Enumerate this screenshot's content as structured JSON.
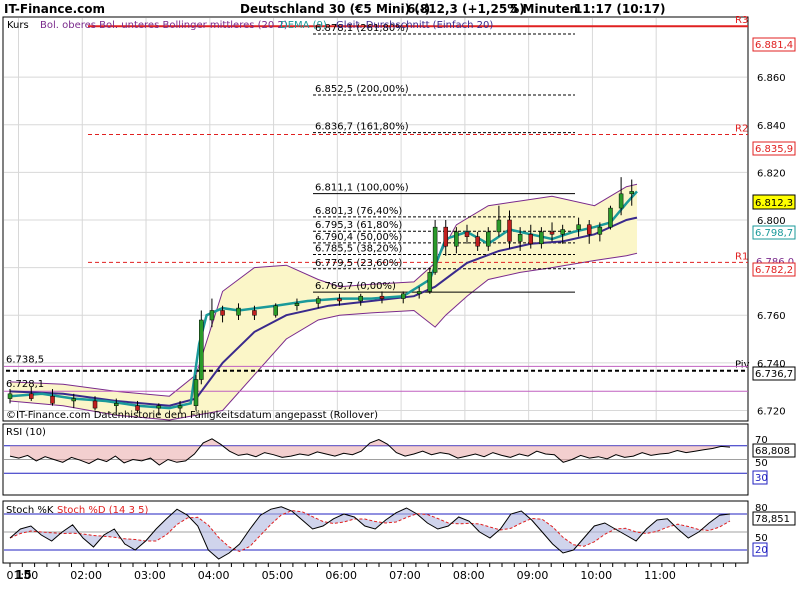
{
  "header": {
    "site": "IT-Finance.com",
    "instrument": "Deutschland 30 (€5 Mini) (-)",
    "price": "6.812,3 (+1,25%)",
    "interval": "5 Minuten",
    "time": "11:17 (10:17)"
  },
  "colors": {
    "bollinger": "#7a2a8c",
    "dema": "#1a9a9a",
    "sma": "#3a2a8c",
    "band_fill": "#fbf6c8",
    "resistance": "#e02020",
    "pivot": "#000000",
    "rsi_fill": "#e8a0a0",
    "stoch_fill": "#b0b8e0"
  },
  "legend": {
    "kurs": "Kurs",
    "bollinger": "Bol. oberes Bol. unteres Bollinger mittleres (20 2)",
    "dema": "DEMA (9)",
    "sma": "Gleit. Durchschnitt (Einfach 20)"
  },
  "watermark": "©IT-Finance.com  Datenhistorie dem Fälligkeitsdatum angepasst (Rollover)",
  "levels": {
    "r3": {
      "label": "R3",
      "value": "6.881,4"
    },
    "r2": {
      "label": "R2",
      "value": "6.835,9"
    },
    "r1": {
      "label": "R1",
      "value": "6.782,2"
    },
    "piv": {
      "label": "Piv",
      "value": "6.736,7"
    },
    "last": "6.812,3",
    "sma_val": "6.798,7",
    "band_lower": "6.786,0",
    "left_hi": "6.738,5",
    "left_lo": "6.728,1"
  },
  "fib": [
    "6.878,1 (261,80%)",
    "6.852,5 (200,00%)",
    "6.836,7 (161,80%)",
    "6.811,1 (100,00%)",
    "6.801,3 (76,40%)",
    "6.795,3 (61,80%)",
    "6.790,4 (50,00%)",
    "6.785,5 (38,20%)",
    "6.779,5 (23,60%)",
    "6.769,7 (0,00%)"
  ],
  "price_axis": [
    "6.860",
    "6.840",
    "6.820",
    "6.800",
    "6.780",
    "6.760",
    "6.740",
    "6.720"
  ],
  "time_axis": [
    "15",
    "01:00",
    "02:00",
    "03:00",
    "04:00",
    "05:00",
    "06:00",
    "07:00",
    "08:00",
    "09:00",
    "10:00",
    "11:00"
  ],
  "rsi": {
    "title": "RSI (10)",
    "value": "68,808",
    "ticks": [
      "70",
      "50"
    ],
    "low_label": "30"
  },
  "stoch": {
    "title": "Stoch %K",
    "title2": "Stoch %D (14 3 5)",
    "value": "78,851",
    "ticks": [
      "80",
      "50"
    ],
    "low_label": "20"
  },
  "chart_data": {
    "type": "candlestick",
    "ylim": [
      6716,
      6884
    ],
    "x_range": [
      "00:00",
      "11:20"
    ],
    "dema_points": [
      [
        0,
        6726
      ],
      [
        30,
        6727
      ],
      [
        60,
        6725
      ],
      [
        90,
        6724
      ],
      [
        120,
        6722
      ],
      [
        150,
        6721
      ],
      [
        170,
        6723
      ],
      [
        178,
        6748
      ],
      [
        185,
        6760
      ],
      [
        200,
        6763
      ],
      [
        215,
        6762
      ],
      [
        250,
        6764
      ],
      [
        280,
        6766
      ],
      [
        310,
        6767
      ],
      [
        340,
        6767
      ],
      [
        370,
        6768
      ],
      [
        395,
        6775
      ],
      [
        410,
        6792
      ],
      [
        430,
        6795
      ],
      [
        450,
        6790
      ],
      [
        470,
        6796
      ],
      [
        490,
        6794
      ],
      [
        510,
        6792
      ],
      [
        530,
        6795
      ],
      [
        550,
        6797
      ],
      [
        565,
        6799
      ],
      [
        580,
        6807
      ],
      [
        590,
        6812
      ]
    ],
    "sma_points": [
      [
        0,
        6728
      ],
      [
        50,
        6727
      ],
      [
        100,
        6724
      ],
      [
        150,
        6722
      ],
      [
        175,
        6725
      ],
      [
        200,
        6740
      ],
      [
        230,
        6753
      ],
      [
        260,
        6760
      ],
      [
        300,
        6764
      ],
      [
        340,
        6766
      ],
      [
        380,
        6768
      ],
      [
        400,
        6772
      ],
      [
        430,
        6782
      ],
      [
        460,
        6787
      ],
      [
        490,
        6790
      ],
      [
        520,
        6791
      ],
      [
        550,
        6794
      ],
      [
        580,
        6800
      ],
      [
        590,
        6801
      ]
    ],
    "upper_points": [
      [
        0,
        6732
      ],
      [
        50,
        6731
      ],
      [
        100,
        6728
      ],
      [
        150,
        6726
      ],
      [
        175,
        6735
      ],
      [
        200,
        6770
      ],
      [
        230,
        6780
      ],
      [
        260,
        6781
      ],
      [
        290,
        6775
      ],
      [
        310,
        6772
      ],
      [
        340,
        6773
      ],
      [
        380,
        6774
      ],
      [
        400,
        6782
      ],
      [
        420,
        6798
      ],
      [
        450,
        6806
      ],
      [
        480,
        6808
      ],
      [
        510,
        6810
      ],
      [
        550,
        6806
      ],
      [
        580,
        6814
      ],
      [
        590,
        6815
      ]
    ],
    "lower_points": [
      [
        0,
        6724
      ],
      [
        50,
        6722
      ],
      [
        100,
        6718
      ],
      [
        150,
        6716
      ],
      [
        175,
        6718
      ],
      [
        200,
        6720
      ],
      [
        230,
        6735
      ],
      [
        260,
        6750
      ],
      [
        290,
        6758
      ],
      [
        310,
        6760
      ],
      [
        340,
        6761
      ],
      [
        380,
        6762
      ],
      [
        400,
        6755
      ],
      [
        410,
        6760
      ],
      [
        430,
        6768
      ],
      [
        450,
        6775
      ],
      [
        480,
        6778
      ],
      [
        510,
        6780
      ],
      [
        550,
        6783
      ],
      [
        580,
        6785
      ],
      [
        590,
        6786
      ]
    ],
    "candles": [
      {
        "t": 0,
        "o": 6725,
        "h": 6729,
        "l": 6723,
        "c": 6727
      },
      {
        "t": 20,
        "o": 6727,
        "h": 6730,
        "l": 6724,
        "c": 6725
      },
      {
        "t": 40,
        "o": 6726,
        "h": 6729,
        "l": 6722,
        "c": 6723
      },
      {
        "t": 60,
        "o": 6724,
        "h": 6727,
        "l": 6721,
        "c": 6725
      },
      {
        "t": 80,
        "o": 6724,
        "h": 6726,
        "l": 6720,
        "c": 6721
      },
      {
        "t": 100,
        "o": 6722,
        "h": 6725,
        "l": 6719,
        "c": 6723
      },
      {
        "t": 120,
        "o": 6722,
        "h": 6724,
        "l": 6719,
        "c": 6720
      },
      {
        "t": 140,
        "o": 6721,
        "h": 6723,
        "l": 6718,
        "c": 6722
      },
      {
        "t": 160,
        "o": 6721,
        "h": 6724,
        "l": 6719,
        "c": 6722
      },
      {
        "t": 175,
        "o": 6722,
        "h": 6735,
        "l": 6720,
        "c": 6733
      },
      {
        "t": 180,
        "o": 6733,
        "h": 6762,
        "l": 6731,
        "c": 6758
      },
      {
        "t": 190,
        "o": 6758,
        "h": 6767,
        "l": 6755,
        "c": 6762
      },
      {
        "t": 200,
        "o": 6762,
        "h": 6764,
        "l": 6757,
        "c": 6760
      },
      {
        "t": 215,
        "o": 6760,
        "h": 6765,
        "l": 6758,
        "c": 6763
      },
      {
        "t": 230,
        "o": 6762,
        "h": 6764,
        "l": 6758,
        "c": 6760
      },
      {
        "t": 250,
        "o": 6760,
        "h": 6765,
        "l": 6759,
        "c": 6764
      },
      {
        "t": 270,
        "o": 6764,
        "h": 6767,
        "l": 6762,
        "c": 6765
      },
      {
        "t": 290,
        "o": 6765,
        "h": 6768,
        "l": 6763,
        "c": 6767
      },
      {
        "t": 310,
        "o": 6767,
        "h": 6769,
        "l": 6764,
        "c": 6766
      },
      {
        "t": 330,
        "o": 6766,
        "h": 6769,
        "l": 6764,
        "c": 6768
      },
      {
        "t": 350,
        "o": 6768,
        "h": 6770,
        "l": 6765,
        "c": 6767
      },
      {
        "t": 370,
        "o": 6767,
        "h": 6770,
        "l": 6765,
        "c": 6769
      },
      {
        "t": 385,
        "o": 6769,
        "h": 6772,
        "l": 6767,
        "c": 6770
      },
      {
        "t": 395,
        "o": 6770,
        "h": 6780,
        "l": 6769,
        "c": 6778
      },
      {
        "t": 400,
        "o": 6778,
        "h": 6800,
        "l": 6777,
        "c": 6797
      },
      {
        "t": 410,
        "o": 6797,
        "h": 6800,
        "l": 6785,
        "c": 6789
      },
      {
        "t": 420,
        "o": 6789,
        "h": 6797,
        "l": 6786,
        "c": 6795
      },
      {
        "t": 430,
        "o": 6795,
        "h": 6798,
        "l": 6790,
        "c": 6793
      },
      {
        "t": 440,
        "o": 6793,
        "h": 6795,
        "l": 6787,
        "c": 6789
      },
      {
        "t": 450,
        "o": 6789,
        "h": 6797,
        "l": 6787,
        "c": 6795
      },
      {
        "t": 460,
        "o": 6795,
        "h": 6806,
        "l": 6793,
        "c": 6800
      },
      {
        "t": 470,
        "o": 6800,
        "h": 6804,
        "l": 6788,
        "c": 6791
      },
      {
        "t": 480,
        "o": 6791,
        "h": 6797,
        "l": 6787,
        "c": 6794
      },
      {
        "t": 490,
        "o": 6794,
        "h": 6798,
        "l": 6788,
        "c": 6790
      },
      {
        "t": 500,
        "o": 6790,
        "h": 6797,
        "l": 6788,
        "c": 6795
      },
      {
        "t": 510,
        "o": 6795,
        "h": 6799,
        "l": 6791,
        "c": 6794
      },
      {
        "t": 520,
        "o": 6794,
        "h": 6798,
        "l": 6790,
        "c": 6796
      },
      {
        "t": 535,
        "o": 6796,
        "h": 6801,
        "l": 6793,
        "c": 6798
      },
      {
        "t": 545,
        "o": 6798,
        "h": 6800,
        "l": 6790,
        "c": 6794
      },
      {
        "t": 555,
        "o": 6794,
        "h": 6799,
        "l": 6791,
        "c": 6797
      },
      {
        "t": 565,
        "o": 6797,
        "h": 6806,
        "l": 6796,
        "c": 6805
      },
      {
        "t": 575,
        "o": 6805,
        "h": 6818,
        "l": 6802,
        "c": 6811
      },
      {
        "t": 585,
        "o": 6811,
        "h": 6817,
        "l": 6806,
        "c": 6812
      }
    ]
  }
}
